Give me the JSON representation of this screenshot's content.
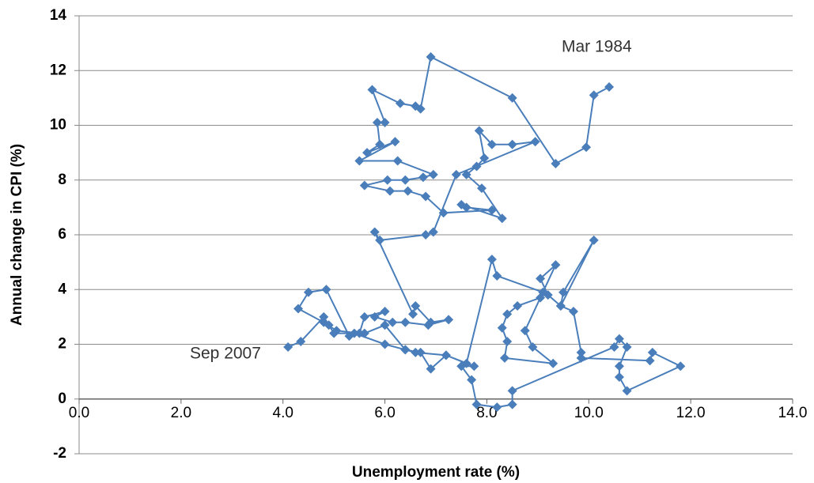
{
  "chart_data": {
    "type": "scatter-line",
    "x_label": "Unemployment rate (%)",
    "y_label": "Annual change in CPI (%)",
    "annotations": [
      "Mar 1984",
      "Sep 2007"
    ],
    "xlim": [
      0,
      14
    ],
    "xticks": [
      {
        "value": 0,
        "label": "0.0"
      },
      {
        "value": 2,
        "label": "2.0"
      },
      {
        "value": 4,
        "label": "4.0"
      },
      {
        "value": 6,
        "label": "6.0"
      },
      {
        "value": 8,
        "label": "8.0"
      },
      {
        "value": 10,
        "label": "10.0"
      },
      {
        "value": 12,
        "label": "12.0"
      },
      {
        "value": 14,
        "label": "14.0"
      }
    ],
    "ylim": [
      -2,
      14
    ],
    "yticks": [
      -2,
      0,
      2,
      4,
      6,
      8,
      10,
      12,
      14
    ],
    "grid": true,
    "series": [
      {
        "color": "#4a7ebb",
        "x": [
          10.4,
          10.1,
          9.95,
          9.35,
          8.5,
          6.9,
          6.7,
          6.6,
          6.3,
          5.75,
          6.0,
          5.85,
          5.9,
          5.65,
          6.2,
          5.5,
          6.25,
          6.95,
          6.75,
          6.4,
          6.05,
          5.6,
          6.1,
          6.45,
          6.8,
          7.15,
          8.1,
          7.6,
          7.5,
          8.3,
          7.9,
          7.6,
          7.8,
          7.95,
          7.85,
          8.1,
          8.5,
          8.95,
          7.4,
          6.95,
          6.8,
          5.9,
          5.8,
          6.55,
          6.6,
          6.9,
          7.25,
          6.85,
          6.4,
          6.15,
          5.8,
          6.0,
          5.6,
          5.5,
          5.05,
          4.8,
          4.3,
          4.5,
          4.85,
          5.3,
          5.6,
          6.0,
          6.4,
          6.6,
          7.2,
          7.6,
          8.1,
          8.2,
          9.1,
          9.05,
          8.6,
          8.4,
          8.3,
          8.4,
          8.35,
          9.3,
          8.9,
          8.75,
          9.35,
          9.05,
          9.2,
          9.45,
          10.1,
          9.5,
          9.45,
          9.7,
          9.85,
          9.85,
          11.2,
          11.25,
          11.8,
          10.75,
          10.6,
          10.6,
          10.75,
          10.6,
          10.5,
          8.5,
          8.5,
          8.2,
          7.8,
          7.7,
          7.5,
          7.75,
          7.2,
          6.9,
          6.7,
          6.4,
          6.0,
          5.4,
          5.0,
          4.9,
          4.8,
          4.35,
          4.1
        ],
        "values": [
          11.4,
          11.1,
          9.2,
          8.6,
          11.0,
          12.5,
          10.6,
          10.7,
          10.8,
          11.3,
          10.1,
          10.1,
          9.3,
          9.0,
          9.4,
          8.7,
          8.7,
          8.2,
          8.1,
          8.0,
          8.0,
          7.8,
          7.6,
          7.6,
          7.4,
          6.8,
          6.9,
          7.0,
          7.1,
          6.6,
          7.7,
          8.2,
          8.5,
          8.8,
          9.8,
          9.3,
          9.3,
          9.4,
          8.2,
          6.1,
          6.0,
          5.8,
          6.1,
          3.1,
          3.4,
          2.8,
          2.9,
          2.7,
          2.8,
          2.8,
          3.0,
          3.2,
          3.0,
          2.4,
          2.5,
          2.8,
          3.3,
          3.9,
          4.0,
          2.3,
          2.4,
          2.7,
          1.8,
          1.7,
          1.6,
          1.3,
          5.1,
          4.5,
          3.9,
          3.7,
          3.4,
          3.1,
          2.6,
          2.1,
          1.5,
          1.3,
          1.9,
          2.5,
          4.9,
          4.4,
          3.8,
          3.4,
          5.8,
          3.9,
          3.4,
          3.2,
          1.7,
          1.5,
          1.4,
          1.7,
          1.2,
          0.3,
          0.8,
          1.2,
          1.9,
          2.2,
          1.9,
          0.3,
          -0.2,
          -0.3,
          -0.2,
          0.7,
          1.2,
          1.2,
          1.6,
          1.1,
          1.7,
          1.8,
          2.0,
          2.4,
          2.4,
          2.7,
          3.0,
          2.1,
          1.9
        ]
      }
    ]
  }
}
